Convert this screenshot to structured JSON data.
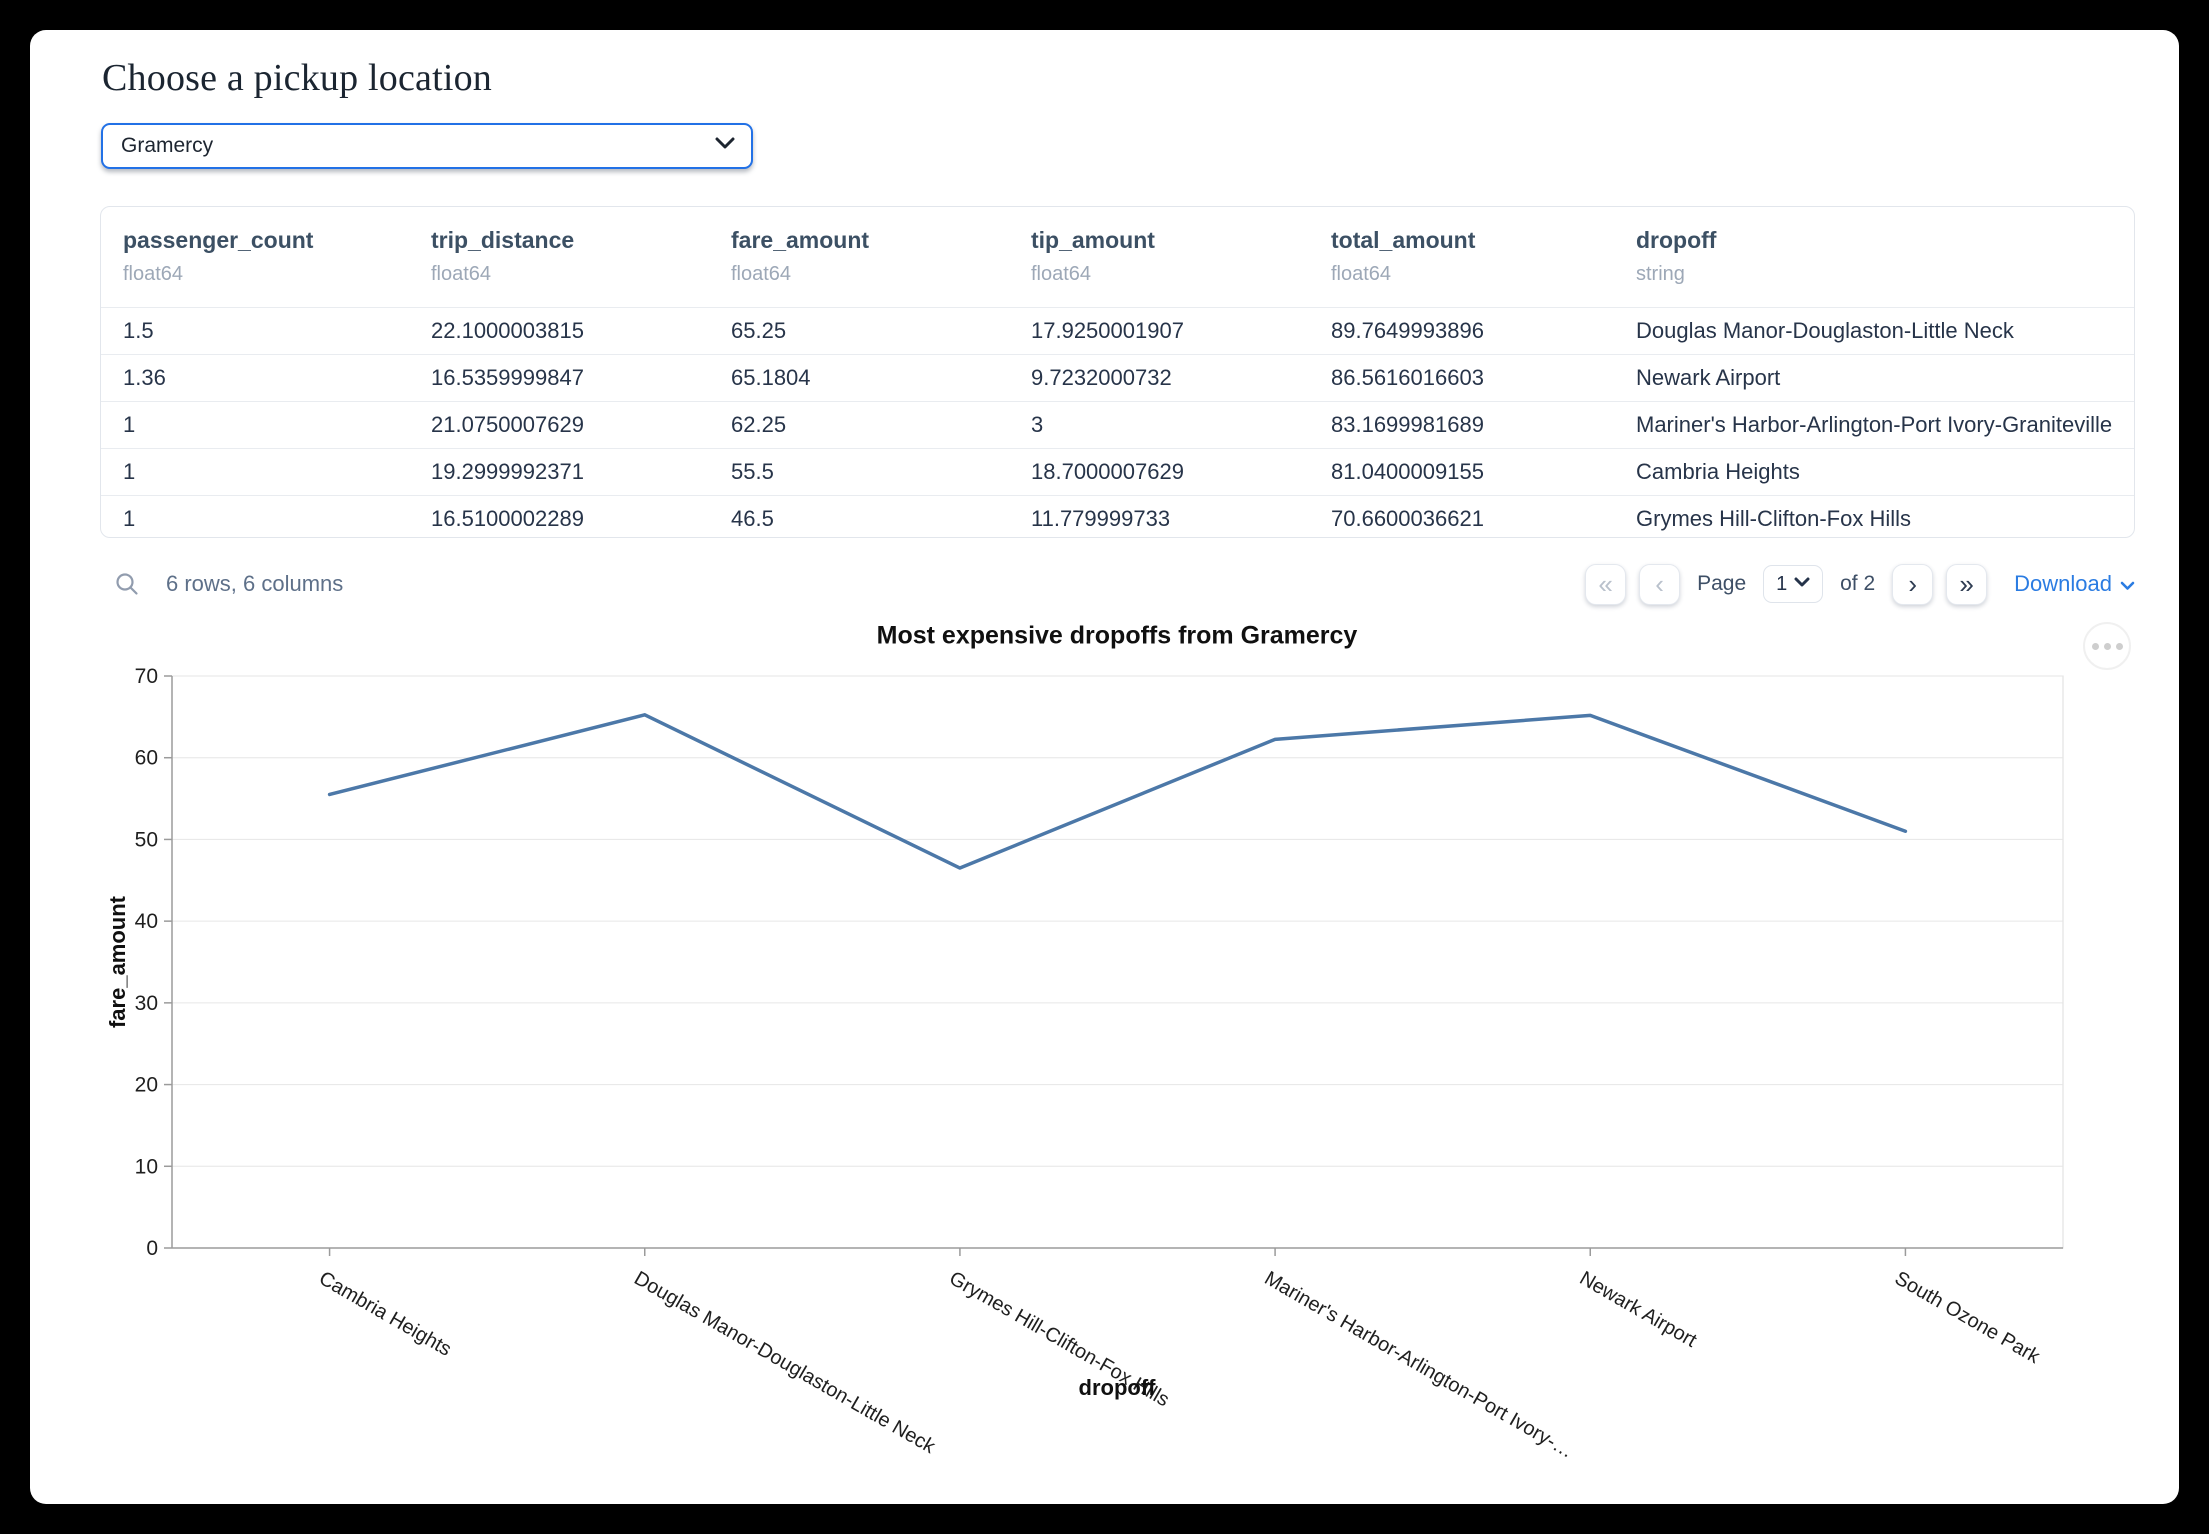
{
  "page": {
    "title": "Choose a pickup location"
  },
  "pickup_select": {
    "value": "Gramercy"
  },
  "table": {
    "columns": [
      {
        "name": "passenger_count",
        "type": "float64"
      },
      {
        "name": "trip_distance",
        "type": "float64"
      },
      {
        "name": "fare_amount",
        "type": "float64"
      },
      {
        "name": "tip_amount",
        "type": "float64"
      },
      {
        "name": "total_amount",
        "type": "float64"
      },
      {
        "name": "dropoff",
        "type": "string"
      }
    ],
    "rows": [
      [
        "1.5",
        "22.1000003815",
        "65.25",
        "17.9250001907",
        "89.7649993896",
        "Douglas Manor-Douglaston-Little Neck"
      ],
      [
        "1.36",
        "16.5359999847",
        "65.1804",
        "9.7232000732",
        "86.5616016603",
        "Newark Airport"
      ],
      [
        "1",
        "21.0750007629",
        "62.25",
        "3",
        "83.1699981689",
        "Mariner's Harbor-Arlington-Port Ivory-Graniteville"
      ],
      [
        "1",
        "19.2999992371",
        "55.5",
        "18.7000007629",
        "81.0400009155",
        "Cambria Heights"
      ],
      [
        "1",
        "16.5100002289",
        "46.5",
        "11.779999733",
        "70.6600036621",
        "Grymes Hill-Clifton-Fox Hills"
      ]
    ],
    "summary": "6 rows, 6 columns"
  },
  "pagination": {
    "first_label": "«",
    "prev_label": "‹",
    "page_label": "Page",
    "current_page": "1",
    "of_label": "of 2",
    "next_label": "›",
    "last_label": "»",
    "download_label": "Download"
  },
  "chart_data": {
    "type": "line",
    "title": "Most expensive dropoffs from Gramercy",
    "xlabel": "dropoff",
    "ylabel": "fare_amount",
    "categories": [
      "Cambria Heights",
      "Douglas Manor-Douglaston-Little Neck",
      "Grymes Hill-Clifton-Fox Hills",
      "Mariner's Harbor-Arlington-Port Ivory-…",
      "Newark Airport",
      "South Ozone Park"
    ],
    "values": [
      55.5,
      65.25,
      46.5,
      62.25,
      65.1804,
      51
    ],
    "ylim": [
      0,
      70
    ],
    "ytick_step": 10,
    "grid": true,
    "legend": "none",
    "line_color": "#4c78a8"
  },
  "colors": {
    "select_border": "#2271e6",
    "link_blue": "#2b7ce2",
    "line_blue": "#4c78a8",
    "header_text": "#3c5064"
  }
}
